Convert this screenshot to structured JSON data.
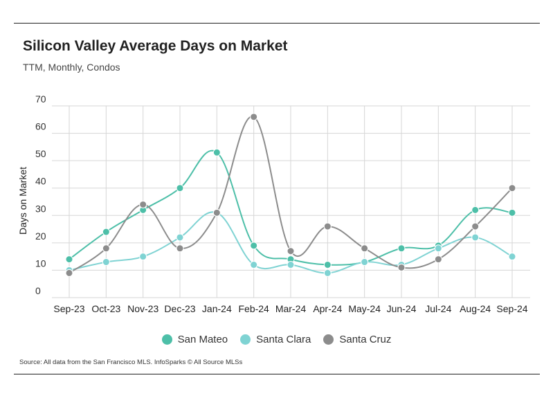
{
  "header": {
    "title": "Silicon Valley Average Days on Market",
    "subtitle": "TTM, Monthly, Condos"
  },
  "footer": {
    "source": "Source:  All data from the San Francisco MLS. InfoSparks © All Source MLSs"
  },
  "colors": {
    "San Mateo": "#4dbfa8",
    "Santa Clara": "#7fd3d3",
    "Santa Cruz": "#8c8c8c",
    "grid": "#d6d6d6"
  },
  "chart_data": {
    "type": "line",
    "title": "Silicon Valley Average Days on Market",
    "subtitle": "TTM, Monthly, Condos",
    "xlabel": "",
    "ylabel": "Days on Market",
    "ylim": [
      0,
      70
    ],
    "yticks": [
      "0",
      "10",
      "20",
      "30",
      "40",
      "50",
      "60",
      "70"
    ],
    "grid": true,
    "legend": "bottom",
    "categories": [
      "Sep-23",
      "Oct-23",
      "Nov-23",
      "Dec-23",
      "Jan-24",
      "Feb-24",
      "Mar-24",
      "Apr-24",
      "May-24",
      "Jun-24",
      "Jul-24",
      "Aug-24",
      "Sep-24"
    ],
    "series": [
      {
        "name": "San Mateo",
        "values": [
          14,
          24,
          32,
          40,
          53,
          19,
          14,
          12,
          13,
          18,
          19,
          32,
          31
        ]
      },
      {
        "name": "Santa Clara",
        "values": [
          10,
          13,
          15,
          22,
          31,
          12,
          12,
          9,
          13,
          12,
          18,
          22,
          15
        ]
      },
      {
        "name": "Santa Cruz",
        "values": [
          9,
          18,
          34,
          18,
          31,
          66,
          17,
          26,
          18,
          11,
          14,
          26,
          40
        ]
      }
    ]
  }
}
